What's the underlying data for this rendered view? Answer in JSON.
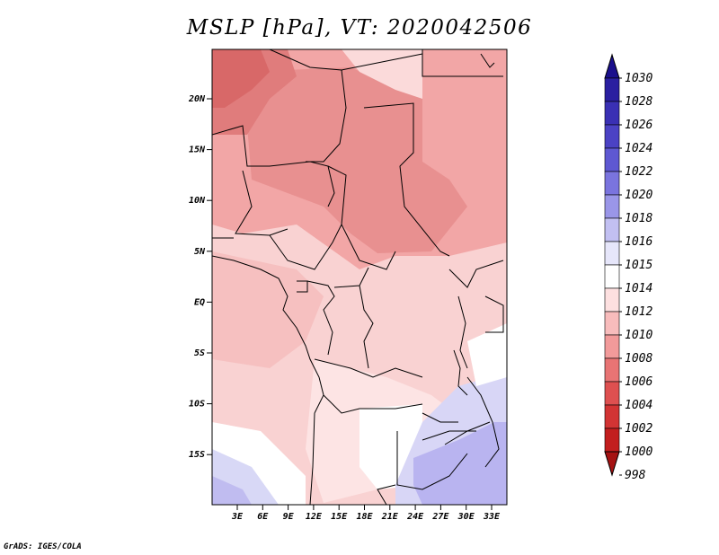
{
  "title": "MSLP [hPa], VT: 2020042506",
  "footer": "GrADS: IGES/COLA",
  "map": {
    "lat_ticks": [
      "20N",
      "15N",
      "10N",
      "5N",
      "EQ",
      "5S",
      "10S",
      "15S"
    ],
    "lon_ticks": [
      "3E",
      "6E",
      "9E",
      "12E",
      "15E",
      "18E",
      "21E",
      "24E",
      "27E",
      "30E",
      "33E"
    ]
  },
  "colorbar": {
    "labels": [
      "1030",
      "1028",
      "1026",
      "1024",
      "1022",
      "1020",
      "1018",
      "1016",
      "1015",
      "1014",
      "1012",
      "1010",
      "1008",
      "1006",
      "1004",
      "1002",
      "1000",
      "998"
    ],
    "colors": [
      "#1a0f8c",
      "#2a1fa0",
      "#3a30b4",
      "#4b42c4",
      "#5e58d2",
      "#7a74de",
      "#9a96e8",
      "#c2c0f2",
      "#e6e6fa",
      "#ffffff",
      "#fde0e0",
      "#f8bcbc",
      "#f29a9a",
      "#e87474",
      "#de5050",
      "#d23434",
      "#c21e1e",
      "#a51212"
    ]
  },
  "regions": [
    {
      "name": "north-core-low",
      "fill": "#e08484"
    },
    {
      "name": "sahel-low",
      "fill": "#ec9c9c"
    },
    {
      "name": "central-trough",
      "fill": "#f2aeae"
    },
    {
      "name": "equatorial",
      "fill": "#f8caca"
    },
    {
      "name": "southern-plateau",
      "fill": "#fde4e4"
    },
    {
      "name": "se-high",
      "fill": "#b9b4f0"
    }
  ]
}
